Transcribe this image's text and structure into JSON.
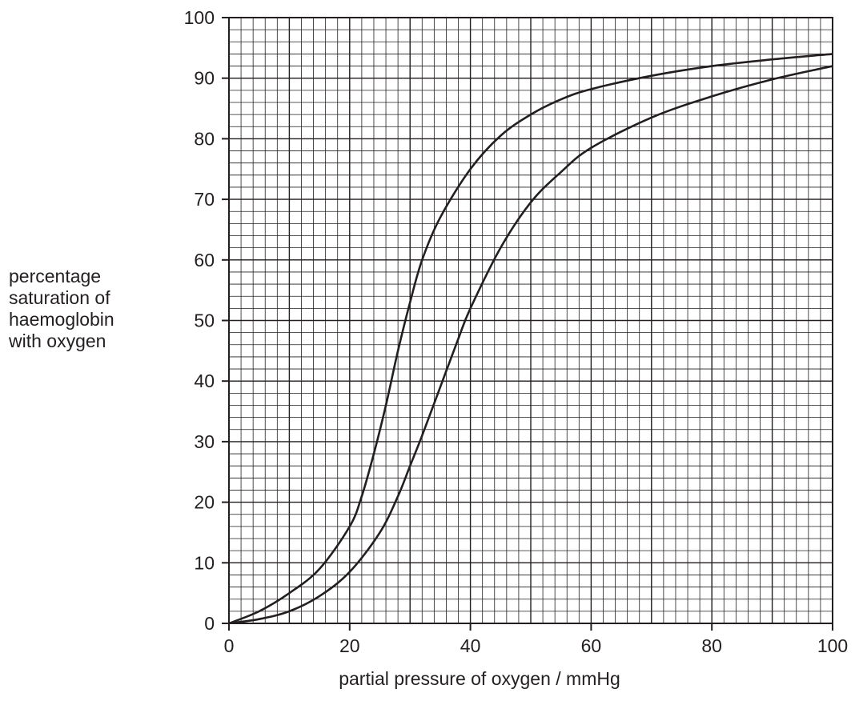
{
  "chart_data": {
    "type": "line",
    "title": "",
    "xlabel": "partial pressure of oxygen / mmHg",
    "ylabel_lines": [
      "percentage",
      "saturation of",
      "haemoglobin",
      "with oxygen"
    ],
    "xlim": [
      0,
      100
    ],
    "ylim": [
      0,
      100
    ],
    "x_ticks": [
      0,
      20,
      40,
      60,
      80,
      100
    ],
    "y_ticks": [
      0,
      10,
      20,
      30,
      40,
      50,
      60,
      70,
      80,
      90,
      100
    ],
    "grid": true,
    "minor_grid_step": 2,
    "colors": {
      "line": "#231f20",
      "grid": "#231f20"
    },
    "series": [
      {
        "x": [
          0,
          5,
          10,
          15,
          20,
          22,
          24,
          26,
          28,
          30,
          32,
          35,
          40,
          45,
          50,
          55,
          60,
          70,
          80,
          90,
          100
        ],
        "values": [
          0,
          2,
          5,
          9,
          16,
          21,
          28,
          36,
          45,
          53,
          60,
          67,
          75,
          80.5,
          84,
          86.5,
          88.2,
          90.4,
          92,
          93.1,
          94
        ]
      },
      {
        "x": [
          0,
          5,
          10,
          15,
          20,
          25,
          28,
          30,
          32,
          35,
          38,
          40,
          45,
          50,
          55,
          60,
          70,
          80,
          90,
          100
        ],
        "values": [
          0,
          0.7,
          2,
          4.5,
          8.5,
          15,
          21,
          26,
          31,
          39,
          47,
          52,
          62,
          69.5,
          74.5,
          78.5,
          83.5,
          87,
          89.8,
          92
        ]
      }
    ]
  }
}
